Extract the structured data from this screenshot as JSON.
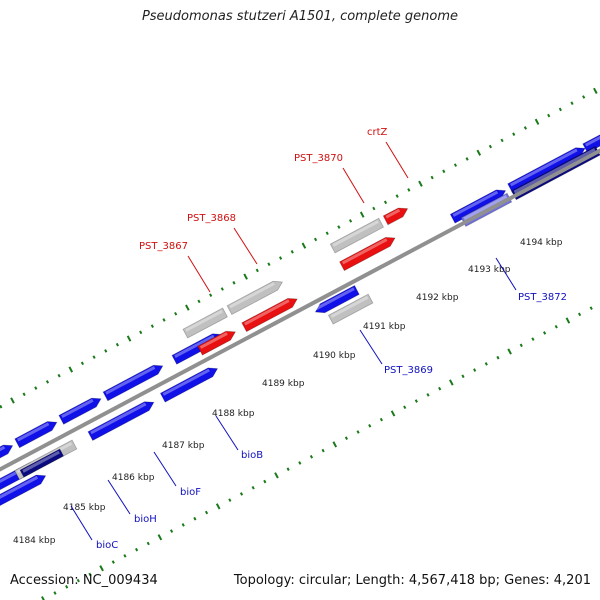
{
  "title": "Pseudomonas stutzeri A1501, complete genome",
  "footer": {
    "accession": "Accession: NC_009434",
    "topology": "Topology: circular; Length: 4,567,418 bp; Genes: 4,201"
  },
  "colors": {
    "forward_gene": "#1010e8",
    "reverse_gene": "#1010e8",
    "rna_feature": "#e81010",
    "gray_feature": "#c0c0c0",
    "highlight_dark": "#0a0a80",
    "highlight_light": "#7070e0",
    "backbone": "#909090",
    "tick": "#1a7a1a",
    "label_red": "#d01010",
    "label_blue": "#1010c0"
  },
  "scale": {
    "unit": "kbp",
    "ticks": [
      {
        "label": "4184 kbp"
      },
      {
        "label": "4185 kbp"
      },
      {
        "label": "4186 kbp"
      },
      {
        "label": "4187 kbp"
      },
      {
        "label": "4188 kbp"
      },
      {
        "label": "4189 kbp"
      },
      {
        "label": "4190 kbp"
      },
      {
        "label": "4191 kbp"
      },
      {
        "label": "4192 kbp"
      },
      {
        "label": "4193 kbp"
      },
      {
        "label": "4194 kbp"
      }
    ]
  },
  "gene_labels": [
    {
      "name": "PST_3867",
      "color": "red"
    },
    {
      "name": "PST_3868",
      "color": "red"
    },
    {
      "name": "PST_3870",
      "color": "red"
    },
    {
      "name": "crtZ",
      "color": "red"
    },
    {
      "name": "PST_3872",
      "color": "blue"
    },
    {
      "name": "PST_3869",
      "color": "blue"
    },
    {
      "name": "bioB",
      "color": "blue"
    },
    {
      "name": "bioF",
      "color": "blue"
    },
    {
      "name": "bioH",
      "color": "blue"
    },
    {
      "name": "bioC",
      "color": "blue"
    }
  ]
}
